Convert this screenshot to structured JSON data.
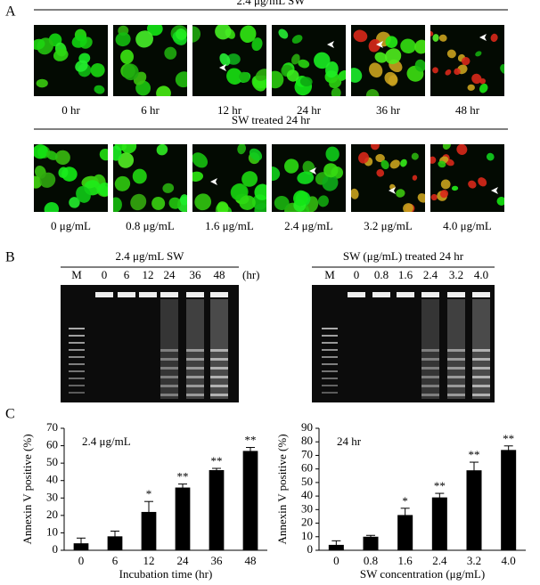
{
  "panel_labels": [
    "A",
    "B",
    "C"
  ],
  "panel_a": {
    "rows": [
      {
        "title": "2.4 μg/mL SW",
        "labels": [
          "0 hr",
          "6 hr",
          "12 hr",
          "24 hr",
          "36 hr",
          "48 hr"
        ]
      },
      {
        "title": "SW treated 24 hr",
        "labels": [
          "0 μg/mL",
          "0.8 μg/mL",
          "1.6 μg/mL",
          "2.4 μg/mL",
          "3.2 μg/mL",
          "4.0 μg/mL"
        ]
      }
    ]
  },
  "panel_b": {
    "gels": [
      {
        "title": "2.4 μg/mL SW",
        "lanes": [
          "M",
          "0",
          "6",
          "12",
          "24",
          "36",
          "48"
        ],
        "unit": "(hr)"
      },
      {
        "title": "SW (μg/mL) treated 24 hr",
        "lanes": [
          "M",
          "0",
          "0.8",
          "1.6",
          "2.4",
          "3.2",
          "4.0"
        ]
      }
    ]
  },
  "chart_data": [
    {
      "type": "bar",
      "annotation": "2.4 μg/mL",
      "y_label": "Annexin V positive (%)",
      "x_label": "Incubation time (hr)",
      "categories": [
        "0",
        "6",
        "12",
        "24",
        "36",
        "48"
      ],
      "values": [
        4,
        8,
        22,
        36,
        46,
        57
      ],
      "errors": [
        3,
        3,
        6,
        2,
        1,
        2
      ],
      "significance": [
        null,
        null,
        "*",
        "**",
        "**",
        "**"
      ],
      "color": "#000000",
      "ylim": [
        0,
        70
      ],
      "yticks": [
        0,
        10,
        20,
        30,
        40,
        50,
        60,
        70
      ]
    },
    {
      "type": "bar",
      "annotation": "24 hr",
      "y_label": "Annexin V positive (%)",
      "x_label": "SW concentration (μg/mL)",
      "categories": [
        "0",
        "0.8",
        "1.6",
        "2.4",
        "3.2",
        "4.0"
      ],
      "values": [
        4,
        10,
        26,
        39,
        59,
        74
      ],
      "errors": [
        3,
        1,
        5,
        3,
        6,
        3
      ],
      "significance": [
        null,
        null,
        "*",
        "**",
        "**",
        "**"
      ],
      "color": "#000000",
      "ylim": [
        0,
        90
      ],
      "yticks": [
        0,
        10,
        20,
        30,
        40,
        50,
        60,
        70,
        80,
        90
      ]
    }
  ]
}
